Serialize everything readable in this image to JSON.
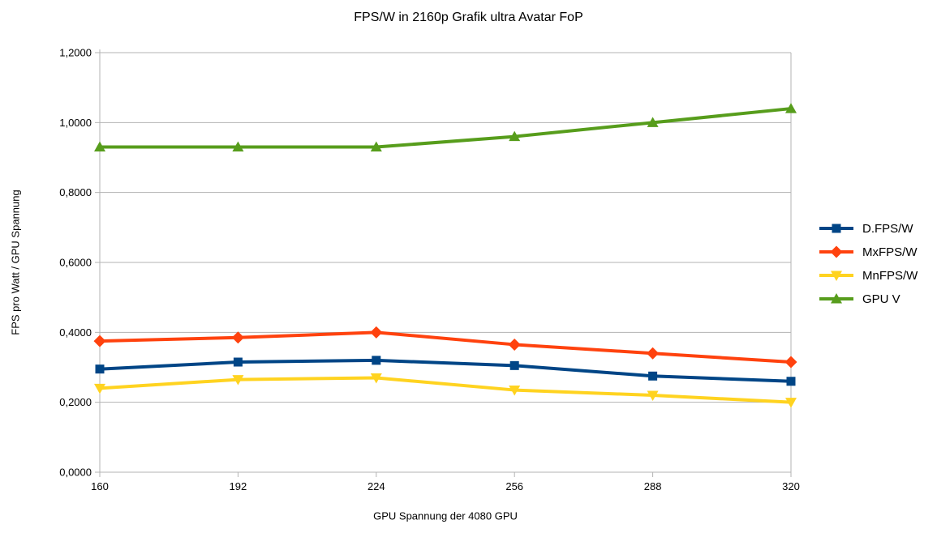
{
  "chart_data": {
    "type": "line",
    "title": "FPS/W in 2160p Grafik ultra Avatar FoP",
    "xlabel": "GPU Spannung der 4080 GPU",
    "ylabel": "FPS pro Watt / GPU Spannung",
    "categories": [
      160,
      192,
      224,
      256,
      288,
      320
    ],
    "series": [
      {
        "name": "D.FPS/W",
        "color": "#004586",
        "marker": "square",
        "values": [
          0.295,
          0.315,
          0.32,
          0.305,
          0.275,
          0.26
        ]
      },
      {
        "name": "MxFPS/W",
        "color": "#FF420E",
        "marker": "diamond",
        "values": [
          0.375,
          0.385,
          0.4,
          0.365,
          0.34,
          0.315
        ]
      },
      {
        "name": "MnFPS/W",
        "color": "#FFD320",
        "marker": "triangle-down",
        "values": [
          0.24,
          0.265,
          0.27,
          0.235,
          0.22,
          0.2
        ]
      },
      {
        "name": "GPU V",
        "color": "#579D1C",
        "marker": "triangle-up",
        "values": [
          0.93,
          0.93,
          0.93,
          0.96,
          1.0,
          1.04
        ]
      }
    ],
    "ylim": [
      0,
      1.2
    ],
    "y_ticks": {
      "values": [
        0,
        0.2,
        0.4,
        0.6,
        0.8,
        1.0,
        1.2
      ],
      "labels": [
        "0,0000",
        "0,2000",
        "0,4000",
        "0,6000",
        "0,8000",
        "1,0000",
        "1,2000"
      ]
    },
    "x_tick_labels": [
      "160",
      "192",
      "224",
      "256",
      "288",
      "320"
    ],
    "grid": "horizontal",
    "legend_position": "right",
    "axis_color": "#b3b3b3",
    "grid_color": "#b3b3b3",
    "background": "#ffffff"
  }
}
